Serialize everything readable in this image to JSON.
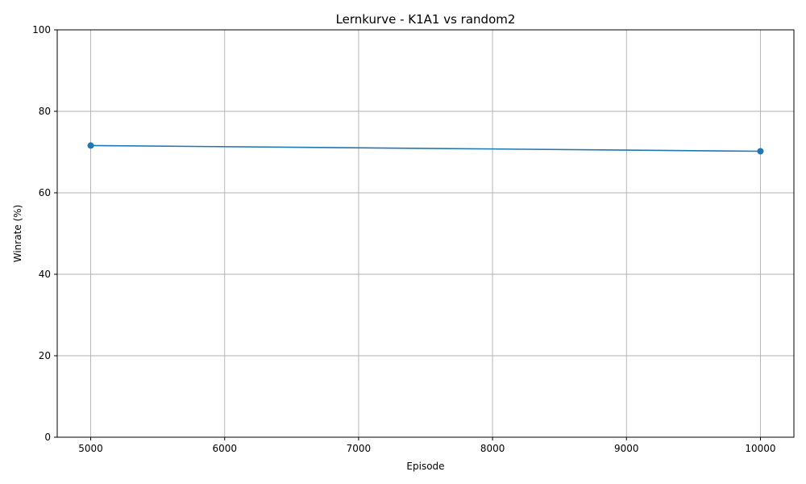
{
  "chart_data": {
    "type": "line",
    "title": "Lernkurve - K1A1 vs random2",
    "xlabel": "Episode",
    "ylabel": "Winrate (%)",
    "xlim": [
      4750,
      10250
    ],
    "ylim": [
      0,
      100
    ],
    "xticks": [
      5000,
      6000,
      7000,
      8000,
      9000,
      10000
    ],
    "yticks": [
      0,
      20,
      40,
      60,
      80,
      100
    ],
    "grid": true,
    "series": [
      {
        "color": "#1f77b4",
        "marker": "circle",
        "x": [
          5000,
          10000
        ],
        "y": [
          71.6,
          70.2
        ]
      }
    ]
  }
}
